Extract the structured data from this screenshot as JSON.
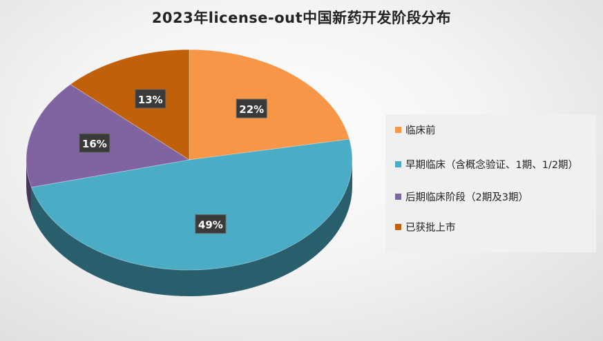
{
  "chart_data": {
    "type": "pie",
    "title": "2023年license-out中国新药开发阶段分布",
    "legend_position": "right",
    "slices": [
      {
        "label": "临床前",
        "value": 22,
        "display": "22%",
        "color": "#f79646"
      },
      {
        "label": "早期临床（含概念验证、1期、1/2期）",
        "value": 49,
        "display": "49%",
        "color": "#4bacc6"
      },
      {
        "label": "后期临床阶段（2期及3期）",
        "value": 16,
        "display": "16%",
        "color": "#8064a2"
      },
      {
        "label": "已获批上市",
        "value": 13,
        "display": "13%",
        "color": "#c0600b"
      }
    ]
  }
}
